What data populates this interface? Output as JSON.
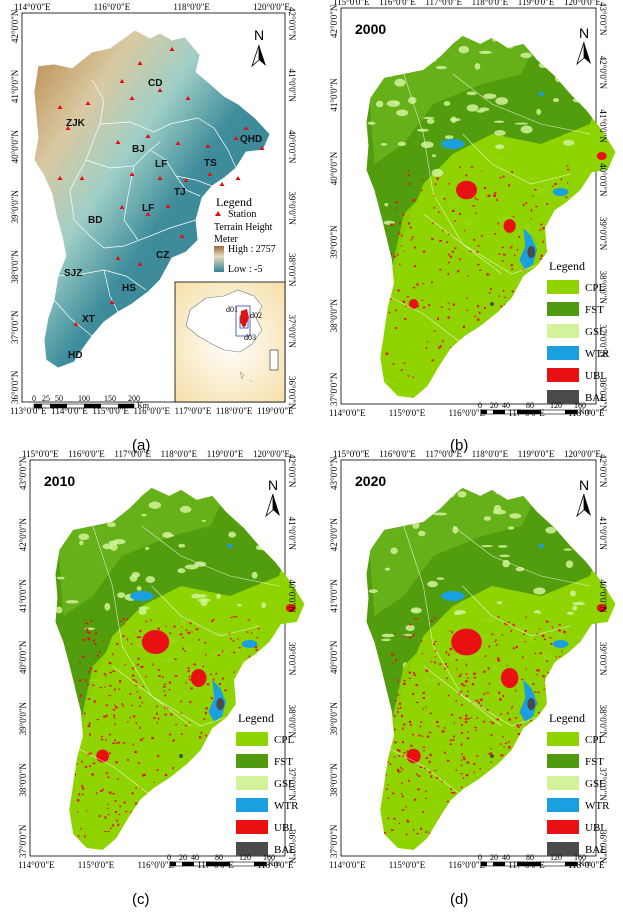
{
  "panels": {
    "a": {
      "caption": "(a)",
      "top_ticks": [
        "114°0'0\"E",
        "116°0'0\"E",
        "118°0'0\"E",
        "120°0'0\"E"
      ],
      "bottom_ticks": [
        "113°0'0\"E",
        "114°0'0\"E",
        "115°0'0\"E",
        "116°0'0\"E",
        "117°0'0\"E",
        "118°0'0\"E",
        "119°0'0\"E"
      ],
      "left_ticks": [
        "42°0'0\"N",
        "41°0'0\"N",
        "40°0'0\"N",
        "39°0'0\"N",
        "38°0'0\"N",
        "37°0'0\"N",
        "36°0'0\"N"
      ],
      "right_ticks": [
        "42°0'0\"N",
        "41°0'0\"N",
        "40°0'0\"N",
        "39°0'0\"N",
        "38°0'0\"N",
        "37°0'0\"N",
        "36°0'0\"N"
      ],
      "regions": [
        "CD",
        "ZJK",
        "BJ",
        "QHD",
        "LF",
        "TS",
        "TJ",
        "LF",
        "BD",
        "CZ",
        "SJZ",
        "HS",
        "XT",
        "HD"
      ],
      "legend": {
        "title": "Legend",
        "station": "Station",
        "terrain": "Terrain Height",
        "unit": "Meter",
        "high": "High : 2757",
        "low": "Low : -5"
      },
      "inset_labels": [
        "d01",
        "d02",
        "d03"
      ],
      "scale_labels": [
        "0",
        "25",
        "50",
        "100",
        "150",
        "200"
      ],
      "scale_unit": "Km",
      "north": "N"
    },
    "b": {
      "caption": "(b)",
      "year": "2000",
      "top_ticks": [
        "115°0'0\"E",
        "116°0'0\"E",
        "117°0'0\"E",
        "118°0'0\"E",
        "119°0'0\"E",
        "120°0'0\"E"
      ],
      "bottom_ticks": [
        "114°0'0\"E",
        "115°0'0\"E",
        "116°0'0\"E",
        "117°0'0\"E",
        "118°0'0\"E"
      ],
      "right_ticks": [
        "43°0'0\"N",
        "42°0'0\"N",
        "41°0'0\"N",
        "40°0'0\"N",
        "39°0'0\"N",
        "38°0'0\"N",
        "37°0'0\"N",
        "36°0'0\"N"
      ],
      "left_ticks": [
        "42°0'0\"N",
        "41°0'0\"N",
        "40°0'0\"N",
        "39°0'0\"N",
        "38°0'0\"N",
        "37°0'0\"N"
      ],
      "scale_labels": [
        "0",
        "20",
        "40",
        "80",
        "120",
        "160"
      ],
      "scale_unit": "Km",
      "north": "N"
    },
    "c": {
      "caption": "(c)",
      "year": "2010",
      "top_ticks": [
        "115°0'0\"E",
        "116°0'0\"E",
        "117°0'0\"E",
        "118°0'0\"E",
        "119°0'0\"E",
        "120°0'0\"E"
      ],
      "bottom_ticks": [
        "114°0'0\"E",
        "115°0'0\"E",
        "116°0'0\"E",
        "117°0'0\"E",
        "118°0'0\"E"
      ],
      "left_ticks": [
        "43°0'0\"N",
        "42°0'0\"N",
        "41°0'0\"N",
        "40°0'0\"N",
        "39°0'0\"N",
        "38°0'0\"N",
        "37°0'0\"N"
      ],
      "right_ticks": [
        "42°0'0\"N",
        "41°0'0\"N",
        "40°0'0\"N",
        "39°0'0\"N",
        "38°0'0\"N",
        "37°0'0\"N",
        "36°0'0\"N"
      ],
      "scale_labels": [
        "0",
        "20",
        "40",
        "80",
        "120",
        "160"
      ],
      "scale_unit": "Km",
      "north": "N"
    },
    "d": {
      "caption": "(d)",
      "year": "2020",
      "top_ticks": [
        "115°0'0\"E",
        "116°0'0\"E",
        "117°0'0\"E",
        "118°0'0\"E",
        "119°0'0\"E",
        "120°0'0\"E"
      ],
      "bottom_ticks": [
        "114°0'0\"E",
        "115°0'0\"E",
        "116°0'0\"E",
        "117°0'0\"E",
        "118°0'0\"E"
      ],
      "left_ticks": [
        "43°0'0\"N",
        "42°0'0\"N",
        "41°0'0\"N",
        "40°0'0\"N",
        "39°0'0\"N",
        "38°0'0\"N",
        "37°0'0\"N"
      ],
      "right_ticks": [
        "42°0'0\"N",
        "41°0'0\"N",
        "40°0'0\"N",
        "39°0'0\"N",
        "38°0'0\"N",
        "37°0'0\"N",
        "36°0'0\"N"
      ],
      "scale_labels": [
        "0",
        "20",
        "40",
        "80",
        "120",
        "160"
      ],
      "scale_unit": "Km",
      "north": "N"
    }
  },
  "landuse_legend": {
    "title": "Legend",
    "items": [
      {
        "code": "CPL",
        "color": "#8fd400"
      },
      {
        "code": "FST",
        "color": "#4f9a0f"
      },
      {
        "code": "GSL",
        "color": "#d2f39a"
      },
      {
        "code": "WTR",
        "color": "#1aa0e0"
      },
      {
        "code": "UBL",
        "color": "#e81010"
      },
      {
        "code": "BAL",
        "color": "#4a4a4a"
      }
    ]
  },
  "colors": {
    "lowland": "#3a8a9a",
    "highland": "#b8864a",
    "station": "#e01010"
  }
}
